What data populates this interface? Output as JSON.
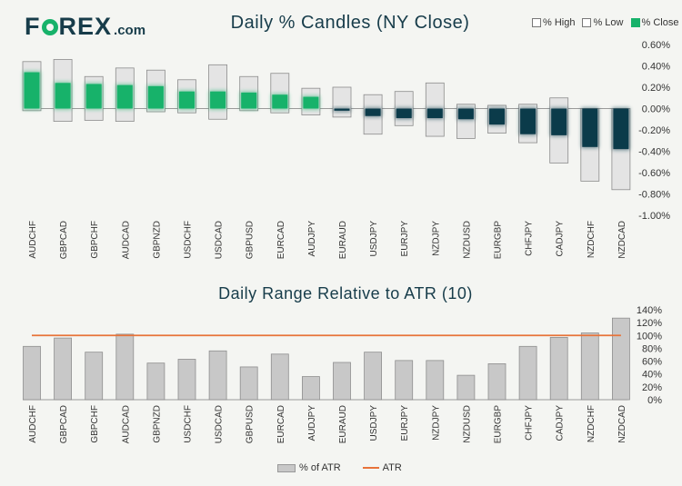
{
  "logo": {
    "left": "F",
    "right": "REX",
    "domain": ".com"
  },
  "legend_top": {
    "high": "% High",
    "low": "% Low",
    "close": "% Close"
  },
  "legend_bottom": {
    "pct_atr": "% of ATR",
    "atr": "ATR"
  },
  "colors": {
    "green": "#17b26a",
    "navy": "#0b3b4a",
    "grey": "#c8c8c8",
    "orange": "#e8733a",
    "bg": "#f4f5f2"
  },
  "chart_data": [
    {
      "type": "candlestick",
      "title": "Daily % Candles (NY Close)",
      "categories": [
        "AUDCHF",
        "GBPCAD",
        "GBPCHF",
        "AUDCAD",
        "GBPNZD",
        "USDCHF",
        "USDCAD",
        "GBPUSD",
        "EURCAD",
        "AUDJPY",
        "EURAUD",
        "USDJPY",
        "EURJPY",
        "NZDJPY",
        "NZDUSD",
        "EURGBP",
        "CHFJPY",
        "CADJPY",
        "NZDCHF",
        "NZDCAD"
      ],
      "high": [
        0.44,
        0.46,
        0.3,
        0.38,
        0.36,
        0.27,
        0.41,
        0.3,
        0.33,
        0.19,
        0.2,
        0.13,
        0.16,
        0.24,
        0.04,
        0.03,
        0.04,
        0.1,
        0.0,
        0.0
      ],
      "low": [
        -0.02,
        -0.12,
        -0.11,
        -0.12,
        -0.03,
        -0.04,
        -0.1,
        -0.02,
        -0.04,
        -0.06,
        -0.08,
        -0.24,
        -0.16,
        -0.26,
        -0.28,
        -0.23,
        -0.32,
        -0.51,
        -0.68,
        -0.76
      ],
      "close": [
        0.34,
        0.24,
        0.23,
        0.22,
        0.21,
        0.16,
        0.16,
        0.15,
        0.13,
        0.11,
        -0.02,
        -0.07,
        -0.09,
        -0.09,
        -0.1,
        -0.15,
        -0.24,
        -0.25,
        -0.36,
        -0.38
      ],
      "yticks": [
        "0.60%",
        "0.40%",
        "0.20%",
        "0.00%",
        "-0.20%",
        "-0.40%",
        "-0.60%",
        "-0.80%",
        "-1.00%"
      ],
      "ylim": [
        -1.0,
        0.6
      ]
    },
    {
      "type": "bar",
      "title": "Daily Range Relative to ATR (10)",
      "categories": [
        "AUDCHF",
        "GBPCAD",
        "GBPCHF",
        "AUDCAD",
        "GBPNZD",
        "USDCHF",
        "USDCAD",
        "GBPUSD",
        "EURCAD",
        "AUDJPY",
        "EURAUD",
        "USDJPY",
        "EURJPY",
        "NZDJPY",
        "NZDUSD",
        "EURGBP",
        "CHFJPY",
        "CADJPY",
        "NZDCHF",
        "NZDCAD"
      ],
      "values": [
        83,
        96,
        74,
        102,
        57,
        63,
        76,
        51,
        71,
        36,
        58,
        74,
        61,
        61,
        38,
        56,
        83,
        97,
        104,
        127
      ],
      "atr_line": 100,
      "yticks": [
        "140%",
        "120%",
        "100%",
        "80%",
        "60%",
        "40%",
        "20%",
        "0%"
      ],
      "ylim": [
        0,
        140
      ]
    }
  ]
}
